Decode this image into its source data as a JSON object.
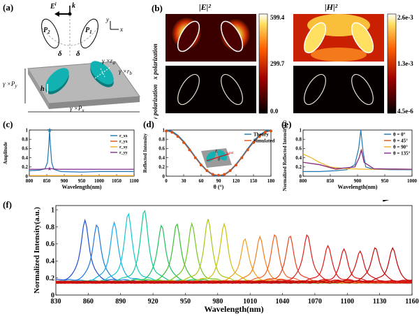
{
  "panels": {
    "a": {
      "label": "(a)",
      "incident_field": "E",
      "incident_field_sup": "i",
      "wavevector": "k",
      "axis_y": "y",
      "axis_x": "x",
      "left_particle": "P",
      "left_particle_sub": "2",
      "right_particle": "P",
      "right_particle_sub": "1",
      "angle_left": "δ",
      "angle_right": "δ",
      "ra": "γ ×r",
      "ra_sub": "a",
      "rb": "γ ×r",
      "rb_sub": "b",
      "py": "γ ×P",
      "py_sub": "y",
      "px": "γ ×P",
      "px_sub": "x",
      "h": "h"
    },
    "b": {
      "label": "(b)",
      "e_title": "|E|²",
      "h_title": "|H|²",
      "row1": "x polarization",
      "row2": "y polarization",
      "e_cbar_ticks": [
        "599.4",
        "299.7",
        "0.0"
      ],
      "h_cbar_ticks": [
        "2.6e-3",
        "1.3e-3",
        "4.5e-6"
      ]
    },
    "c": {
      "label": "(c)"
    },
    "d": {
      "label": "(d)"
    },
    "e": {
      "label": "(e)"
    },
    "f": {
      "label": "(f)",
      "arrow_label": "γ increasing"
    }
  },
  "chart_data": [
    {
      "id": "c",
      "type": "line",
      "xlabel": "Wavelength(nm)",
      "ylabel": "Amplitude",
      "xlim": [
        800,
        1100
      ],
      "ylim": [
        0,
        1
      ],
      "xticks": [
        800,
        850,
        900,
        950,
        1000,
        1050,
        1100
      ],
      "yticks": [
        0,
        0.2,
        0.4,
        0.6,
        0.8,
        1
      ],
      "legend": "top-right",
      "series": [
        {
          "name": "r_xx",
          "color": "#1f77b4",
          "x": [
            800,
            830,
            845,
            852,
            856,
            858,
            860,
            864,
            870,
            890,
            950,
            1000,
            1050,
            1100
          ],
          "y": [
            0.12,
            0.13,
            0.16,
            0.3,
            0.7,
            1.0,
            0.7,
            0.3,
            0.15,
            0.1,
            0.09,
            0.1,
            0.1,
            0.1
          ]
        },
        {
          "name": "r_yx",
          "color": "#d95319",
          "x": [
            800,
            1100
          ],
          "y": [
            0.01,
            0.01
          ]
        },
        {
          "name": "r_xy",
          "color": "#edb120",
          "x": [
            800,
            1100
          ],
          "y": [
            0.01,
            0.01
          ]
        },
        {
          "name": "r_yy",
          "color": "#7e2f8e",
          "x": [
            800,
            830,
            850,
            858,
            866,
            880,
            950,
            1000,
            1050,
            1100
          ],
          "y": [
            0.15,
            0.15,
            0.16,
            0.17,
            0.16,
            0.15,
            0.15,
            0.15,
            0.15,
            0.15
          ]
        }
      ]
    },
    {
      "id": "d",
      "type": "line",
      "xlabel": "θ (°)",
      "ylabel": "Reflected Intensity",
      "xlim": [
        0,
        180
      ],
      "ylim": [
        0,
        1
      ],
      "xticks": [
        0,
        30,
        60,
        90,
        120,
        150,
        180
      ],
      "yticks": [
        0,
        0.2,
        0.4,
        0.6,
        0.8,
        1
      ],
      "legend": "top-right",
      "inset_labels": {
        "field": "E",
        "axis": "x-pol",
        "angle": "θ"
      },
      "series": [
        {
          "name": "Theory",
          "color": "#1f77b4",
          "x": [
            0,
            10,
            20,
            30,
            40,
            50,
            60,
            70,
            80,
            90,
            100,
            110,
            120,
            130,
            140,
            150,
            160,
            170,
            180
          ],
          "y": [
            1.0,
            0.97,
            0.88,
            0.75,
            0.59,
            0.41,
            0.25,
            0.12,
            0.03,
            0.0,
            0.03,
            0.12,
            0.25,
            0.41,
            0.59,
            0.75,
            0.88,
            0.97,
            1.0
          ]
        },
        {
          "name": "Simulated",
          "color": "#d95319",
          "x": [
            0,
            10,
            20,
            30,
            40,
            50,
            60,
            70,
            80,
            90,
            100,
            110,
            120,
            130,
            140,
            150,
            160,
            170,
            180
          ],
          "y": [
            0.98,
            0.95,
            0.86,
            0.73,
            0.57,
            0.4,
            0.24,
            0.12,
            0.04,
            0.02,
            0.04,
            0.12,
            0.24,
            0.4,
            0.57,
            0.73,
            0.86,
            0.95,
            0.98
          ]
        }
      ]
    },
    {
      "id": "e",
      "type": "line",
      "xlabel": "Wavelength(nm)",
      "ylabel": "Normalized Reflected Intensity(a.u.)",
      "xlim": [
        800,
        1000
      ],
      "ylim": [
        0,
        1
      ],
      "xticks": [
        800,
        850,
        900,
        950,
        1000
      ],
      "yticks": [
        0,
        0.2,
        0.4,
        0.6,
        0.8,
        1
      ],
      "legend": "top-right",
      "series": [
        {
          "name": "θ = 0°",
          "color": "#1f77b4",
          "x": [
            800,
            830,
            860,
            880,
            895,
            902,
            906,
            910,
            915,
            930,
            960,
            1000
          ],
          "y": [
            0.1,
            0.1,
            0.12,
            0.14,
            0.25,
            0.6,
            1.0,
            0.55,
            0.2,
            0.15,
            0.14,
            0.14
          ]
        },
        {
          "name": "θ = 45°",
          "color": "#d95319",
          "x": [
            800,
            830,
            860,
            895,
            903,
            907,
            912,
            930,
            1000
          ],
          "y": [
            0.3,
            0.25,
            0.15,
            0.2,
            0.4,
            0.58,
            0.3,
            0.16,
            0.15
          ]
        },
        {
          "name": "θ = 90°",
          "color": "#edb120",
          "x": [
            800,
            815,
            830,
            850,
            880,
            920,
            960,
            1000
          ],
          "y": [
            0.48,
            0.4,
            0.3,
            0.2,
            0.16,
            0.15,
            0.15,
            0.15
          ]
        },
        {
          "name": "θ = 135°",
          "color": "#7e2f8e",
          "x": [
            800,
            830,
            860,
            895,
            903,
            907,
            912,
            930,
            1000
          ],
          "y": [
            0.3,
            0.25,
            0.16,
            0.2,
            0.4,
            0.56,
            0.3,
            0.16,
            0.15
          ]
        }
      ]
    },
    {
      "id": "f",
      "type": "line",
      "xlabel": "Wavelength(nm)",
      "ylabel": "Normalized Intensity(a.u.)",
      "xlim": [
        830,
        1160
      ],
      "ylim": [
        0,
        1.05
      ],
      "xticks": [
        830,
        860,
        890,
        920,
        950,
        980,
        1010,
        1040,
        1070,
        1100,
        1130,
        1160
      ],
      "yticks": [
        0,
        0.2,
        0.4,
        0.6,
        0.8,
        1
      ],
      "baseline": 0.15,
      "peak_width_nm": 4.5,
      "peaks": [
        {
          "x": 857,
          "y": 0.89,
          "color": "#1f4fd0"
        },
        {
          "x": 868,
          "y": 0.84,
          "color": "#1e78e0"
        },
        {
          "x": 884,
          "y": 0.85,
          "color": "#1aa8e8"
        },
        {
          "x": 897,
          "y": 0.95,
          "color": "#15c8d0"
        },
        {
          "x": 912,
          "y": 0.99,
          "color": "#12c89a"
        },
        {
          "x": 928,
          "y": 0.83,
          "color": "#20c060"
        },
        {
          "x": 942,
          "y": 0.85,
          "color": "#38c030"
        },
        {
          "x": 956,
          "y": 0.84,
          "color": "#70c820"
        },
        {
          "x": 971,
          "y": 0.88,
          "color": "#a8c818"
        },
        {
          "x": 986,
          "y": 0.83,
          "color": "#d0c010"
        },
        {
          "x": 1005,
          "y": 0.67,
          "color": "#f0a020"
        },
        {
          "x": 1019,
          "y": 0.68,
          "color": "#f08020"
        },
        {
          "x": 1033,
          "y": 0.7,
          "color": "#f06020"
        },
        {
          "x": 1047,
          "y": 0.69,
          "color": "#e84020"
        },
        {
          "x": 1063,
          "y": 0.72,
          "color": "#e02020"
        },
        {
          "x": 1082,
          "y": 0.57,
          "color": "#e01818"
        },
        {
          "x": 1097,
          "y": 0.53,
          "color": "#d81010"
        },
        {
          "x": 1112,
          "y": 0.52,
          "color": "#d01010"
        },
        {
          "x": 1126,
          "y": 0.57,
          "color": "#c80808"
        },
        {
          "x": 1142,
          "y": 0.55,
          "color": "#c00000"
        }
      ]
    }
  ]
}
